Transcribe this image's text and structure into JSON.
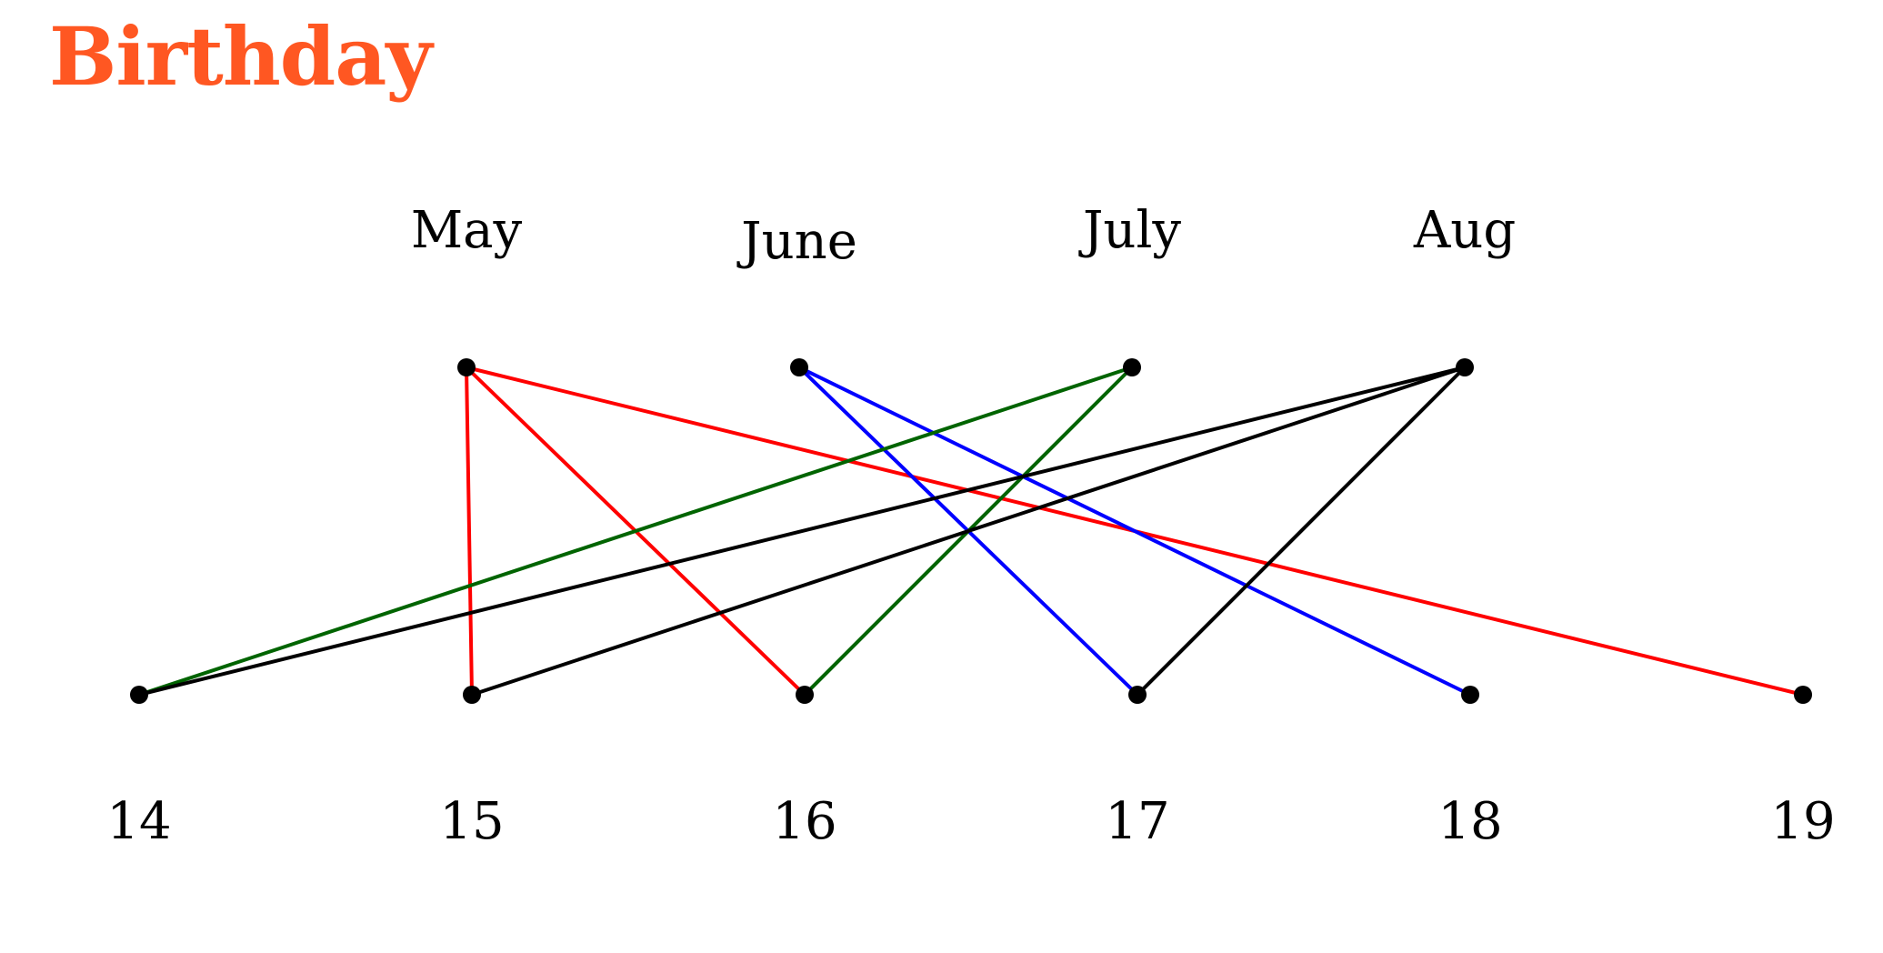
{
  "title": "Birthday",
  "colors": {
    "title": "#ff5722",
    "red": "#ff0000",
    "blue": "#0000ff",
    "green": "#006400",
    "black": "#000000"
  },
  "months": [
    {
      "id": "may",
      "label": "May"
    },
    {
      "id": "june",
      "label": "June"
    },
    {
      "id": "july",
      "label": "July"
    },
    {
      "id": "aug",
      "label": "Aug"
    }
  ],
  "days": [
    {
      "id": "d14",
      "label": "14"
    },
    {
      "id": "d15",
      "label": "15"
    },
    {
      "id": "d16",
      "label": "16"
    },
    {
      "id": "d17",
      "label": "17"
    },
    {
      "id": "d18",
      "label": "18"
    },
    {
      "id": "d19",
      "label": "19"
    }
  ],
  "edges": [
    {
      "from": "may",
      "to": "d15",
      "color": "#ff0000"
    },
    {
      "from": "may",
      "to": "d16",
      "color": "#ff0000"
    },
    {
      "from": "may",
      "to": "d19",
      "color": "#ff0000"
    },
    {
      "from": "june",
      "to": "d17",
      "color": "#0000ff"
    },
    {
      "from": "june",
      "to": "d18",
      "color": "#0000ff"
    },
    {
      "from": "july",
      "to": "d14",
      "color": "#006400"
    },
    {
      "from": "july",
      "to": "d16",
      "color": "#006400"
    },
    {
      "from": "aug",
      "to": "d14",
      "color": "#000000"
    },
    {
      "from": "aug",
      "to": "d15",
      "color": "#000000"
    },
    {
      "from": "aug",
      "to": "d17",
      "color": "#000000"
    }
  ]
}
